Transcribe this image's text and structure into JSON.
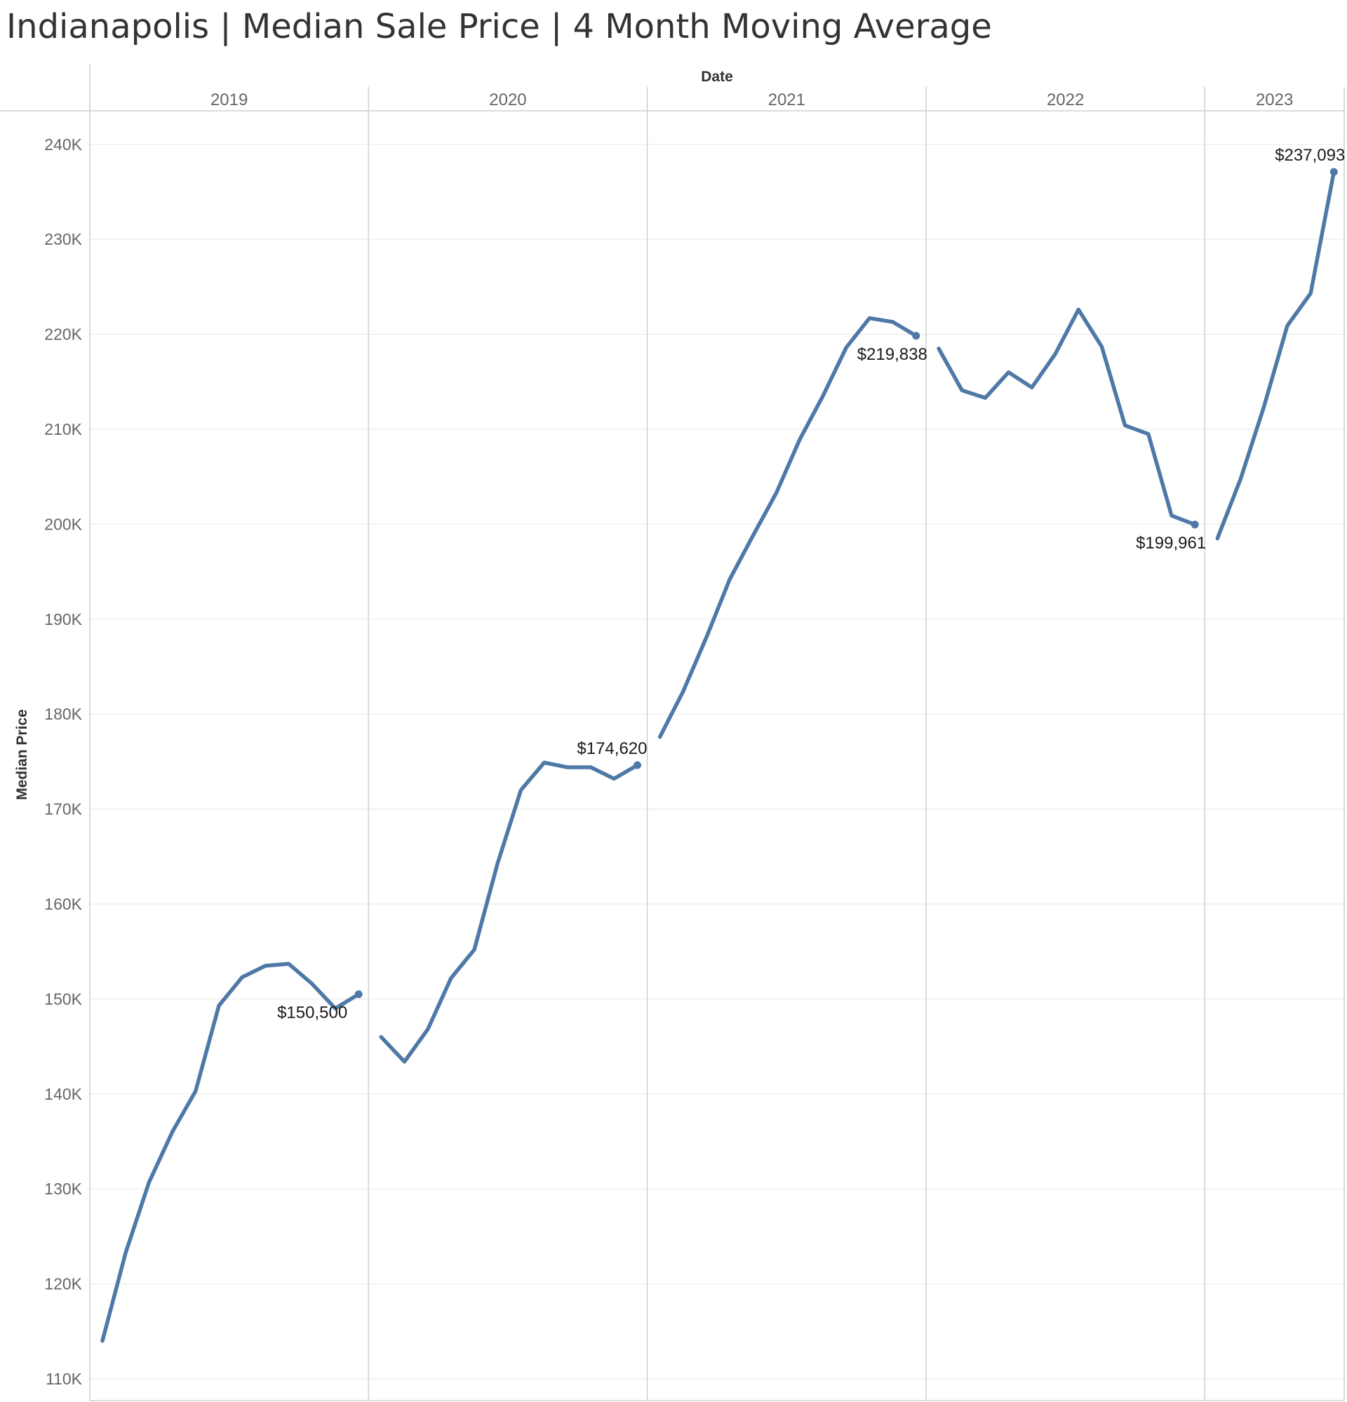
{
  "chart_data": {
    "type": "line",
    "title": "Indianapolis | Median Sale Price | 4 Month Moving Average",
    "xlabel": "Date",
    "ylabel": "Median Price",
    "years": [
      "2019",
      "2020",
      "2021",
      "2022",
      "2023"
    ],
    "ylim": [
      108000,
      242000
    ],
    "y_ticks": [
      {
        "value": 110000,
        "label": "110K"
      },
      {
        "value": 120000,
        "label": "120K"
      },
      {
        "value": 130000,
        "label": "130K"
      },
      {
        "value": 140000,
        "label": "140K"
      },
      {
        "value": 150000,
        "label": "150K"
      },
      {
        "value": 160000,
        "label": "160K"
      },
      {
        "value": 170000,
        "label": "170K"
      },
      {
        "value": 180000,
        "label": "180K"
      },
      {
        "value": 190000,
        "label": "190K"
      },
      {
        "value": 200000,
        "label": "200K"
      },
      {
        "value": 210000,
        "label": "210K"
      },
      {
        "value": 220000,
        "label": "220K"
      },
      {
        "value": 230000,
        "label": "230K"
      },
      {
        "value": 240000,
        "label": "240K"
      }
    ],
    "grid": true,
    "line_color": "#4e79a7",
    "series": [
      {
        "year": "2019",
        "months": [
          1,
          2,
          3,
          4,
          5,
          6,
          7,
          8,
          9,
          10,
          11,
          12
        ],
        "values": [
          114000,
          123300,
          130700,
          136000,
          140300,
          149300,
          152300,
          153500,
          153700,
          151600,
          149000,
          150500
        ],
        "label": "$150,500"
      },
      {
        "year": "2020",
        "months": [
          1,
          2,
          3,
          4,
          5,
          6,
          7,
          8,
          9,
          10,
          11,
          12
        ],
        "values": [
          146000,
          143400,
          146800,
          152200,
          155200,
          164300,
          172000,
          174900,
          174400,
          174400,
          173200,
          174620
        ],
        "label": "$174,620"
      },
      {
        "year": "2021",
        "months": [
          1,
          2,
          3,
          4,
          5,
          6,
          7,
          8,
          9,
          10,
          11,
          12
        ],
        "values": [
          177600,
          182400,
          188100,
          194200,
          198800,
          203300,
          208900,
          213500,
          218600,
          221700,
          221300,
          219838
        ],
        "label": "$219,838"
      },
      {
        "year": "2022",
        "months": [
          1,
          2,
          3,
          4,
          5,
          6,
          7,
          8,
          9,
          10,
          11,
          12
        ],
        "values": [
          218500,
          214100,
          213300,
          216000,
          214400,
          217900,
          222600,
          218700,
          210400,
          209500,
          200900,
          199961
        ],
        "label": "$199,961"
      },
      {
        "year": "2023",
        "months": [
          1,
          2,
          3,
          4,
          5,
          6
        ],
        "values": [
          198500,
          204800,
          212400,
          220900,
          224300,
          237093
        ],
        "label": "$237,093"
      }
    ]
  }
}
